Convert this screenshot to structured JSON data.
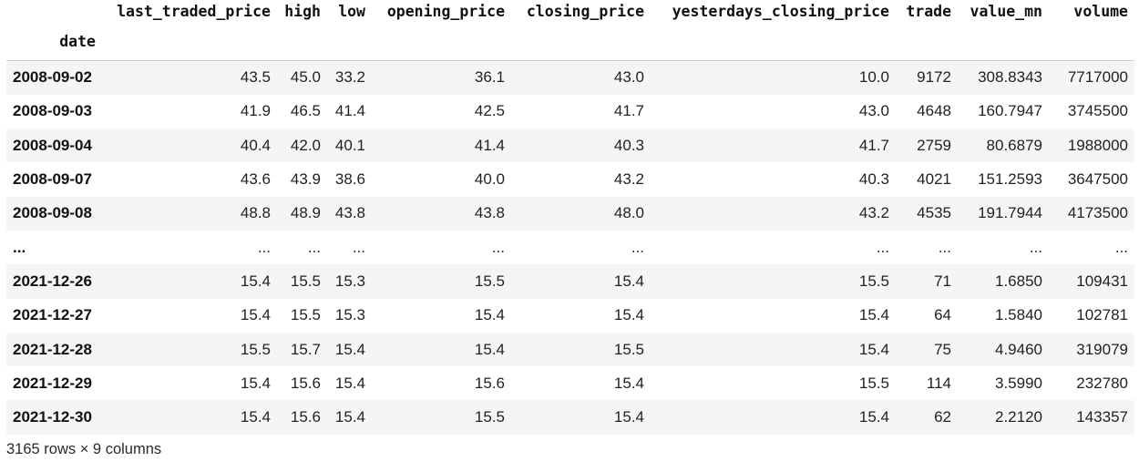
{
  "dataframe": {
    "index_name": "date",
    "columns": [
      "last_traded_price",
      "high",
      "low",
      "opening_price",
      "closing_price",
      "yesterdays_closing_price",
      "trade",
      "value_mn",
      "volume"
    ],
    "rows": [
      {
        "index": "2008-09-02",
        "cells": [
          "43.5",
          "45.0",
          "33.2",
          "36.1",
          "43.0",
          "10.0",
          "9172",
          "308.8343",
          "7717000"
        ]
      },
      {
        "index": "2008-09-03",
        "cells": [
          "41.9",
          "46.5",
          "41.4",
          "42.5",
          "41.7",
          "43.0",
          "4648",
          "160.7947",
          "3745500"
        ]
      },
      {
        "index": "2008-09-04",
        "cells": [
          "40.4",
          "42.0",
          "40.1",
          "41.4",
          "40.3",
          "41.7",
          "2759",
          "80.6879",
          "1988000"
        ]
      },
      {
        "index": "2008-09-07",
        "cells": [
          "43.6",
          "43.9",
          "38.6",
          "40.0",
          "43.2",
          "40.3",
          "4021",
          "151.2593",
          "3647500"
        ]
      },
      {
        "index": "2008-09-08",
        "cells": [
          "48.8",
          "48.9",
          "43.8",
          "43.8",
          "48.0",
          "43.2",
          "4535",
          "191.7944",
          "4173500"
        ]
      },
      {
        "index": "...",
        "cells": [
          "...",
          "...",
          "...",
          "...",
          "...",
          "...",
          "...",
          "...",
          "..."
        ]
      },
      {
        "index": "2021-12-26",
        "cells": [
          "15.4",
          "15.5",
          "15.3",
          "15.5",
          "15.4",
          "15.5",
          "71",
          "1.6850",
          "109431"
        ]
      },
      {
        "index": "2021-12-27",
        "cells": [
          "15.4",
          "15.5",
          "15.3",
          "15.4",
          "15.4",
          "15.4",
          "64",
          "1.5840",
          "102781"
        ]
      },
      {
        "index": "2021-12-28",
        "cells": [
          "15.5",
          "15.7",
          "15.4",
          "15.4",
          "15.5",
          "15.4",
          "75",
          "4.9460",
          "319079"
        ]
      },
      {
        "index": "2021-12-29",
        "cells": [
          "15.4",
          "15.6",
          "15.4",
          "15.6",
          "15.4",
          "15.5",
          "114",
          "3.5990",
          "232780"
        ]
      },
      {
        "index": "2021-12-30",
        "cells": [
          "15.4",
          "15.6",
          "15.4",
          "15.5",
          "15.4",
          "15.4",
          "62",
          "2.2120",
          "143357"
        ]
      }
    ],
    "shape_text": "3165 rows × 9 columns"
  }
}
